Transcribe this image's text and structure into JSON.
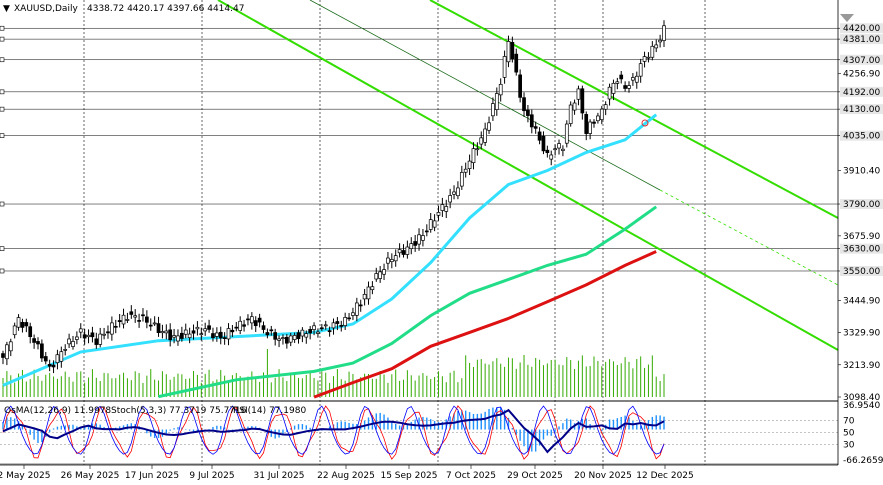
{
  "header": {
    "symbol": "XAUUSD,Daily",
    "ohlc": "4338.72 4420.17 4397.66 4414.47"
  },
  "indicator_header": {
    "osma": "OsMA(12,26,9) 11.9978",
    "stoch": "Stoch(5,3,3) 77.3719 75.7716",
    "rsi": "RSI(14) 77.1980"
  },
  "colors": {
    "candle": "#000000",
    "ema_fast": "#33e0ff",
    "ema_mid": "#22dd88",
    "ema_slow": "#dd1111",
    "channel": "#33dd00",
    "volume": "#33aa00",
    "macd_hist": "#1e90ff",
    "macd_line": "#000080",
    "stoch_main": "#0000ff",
    "stoch_signal": "#ff0000",
    "rsi": "#000088",
    "marker": "#dd3333"
  },
  "chart_data": {
    "type": "candlestick",
    "title": "XAUUSD,Daily",
    "ylim": [
      3098.4,
      4471
    ],
    "y_ticks": [
      4420.0,
      4381.0,
      4307.0,
      4256.9,
      4192.0,
      4130.0,
      4035.0,
      3910.4,
      3790.0,
      3675.9,
      3630.0,
      3550.0,
      3444.9,
      3329.9,
      3213.9,
      3098.4
    ],
    "y_tick_labels": [
      "4420.00",
      "4381.00",
      "4307.00",
      "4256.90",
      "4192.00",
      "4130.00",
      "4035.00",
      "3910.40",
      "3790.00",
      "3675.90",
      "3630.00",
      "3550.00",
      "3444.90",
      "3329.90",
      "3213.90",
      "3098.40"
    ],
    "horizontal_levels": [
      4420.0,
      4381.0,
      4307.0,
      4192.0,
      4130.0,
      4035.0,
      3790.0,
      3630.0,
      3550.0
    ],
    "x_dates": [
      "2 May 2025",
      "26 May 2025",
      "17 Jun 2025",
      "9 Jul 2025",
      "31 Jul 2025",
      "22 Aug 2025",
      "15 Sep 2025",
      "7 Oct 2025",
      "29 Oct 2025",
      "20 Nov 2025",
      "12 Dec 2025"
    ],
    "price_path": [
      [
        0,
        3240
      ],
      [
        4,
        3380
      ],
      [
        8,
        3300
      ],
      [
        12,
        3200
      ],
      [
        16,
        3280
      ],
      [
        20,
        3330
      ],
      [
        24,
        3300
      ],
      [
        28,
        3350
      ],
      [
        32,
        3390
      ],
      [
        36,
        3380
      ],
      [
        40,
        3340
      ],
      [
        44,
        3310
      ],
      [
        48,
        3330
      ],
      [
        52,
        3340
      ],
      [
        56,
        3310
      ],
      [
        60,
        3350
      ],
      [
        64,
        3380
      ],
      [
        68,
        3330
      ],
      [
        72,
        3300
      ],
      [
        76,
        3320
      ],
      [
        80,
        3340
      ],
      [
        84,
        3350
      ],
      [
        88,
        3370
      ],
      [
        92,
        3440
      ],
      [
        96,
        3530
      ],
      [
        100,
        3600
      ],
      [
        104,
        3630
      ],
      [
        108,
        3680
      ],
      [
        112,
        3760
      ],
      [
        116,
        3830
      ],
      [
        120,
        3950
      ],
      [
        124,
        4050
      ],
      [
        128,
        4230
      ],
      [
        130,
        4380
      ],
      [
        132,
        4250
      ],
      [
        134,
        4120
      ],
      [
        136,
        4080
      ],
      [
        138,
        4020
      ],
      [
        140,
        3960
      ],
      [
        142,
        3990
      ],
      [
        144,
        4000
      ],
      [
        146,
        4140
      ],
      [
        148,
        4190
      ],
      [
        150,
        4050
      ],
      [
        152,
        4090
      ],
      [
        154,
        4120
      ],
      [
        156,
        4200
      ],
      [
        158,
        4240
      ],
      [
        160,
        4210
      ],
      [
        162,
        4230
      ],
      [
        164,
        4290
      ],
      [
        166,
        4330
      ],
      [
        168,
        4360
      ],
      [
        170,
        4415
      ]
    ],
    "moving_averages": [
      {
        "name": "",
        "color": "#33e0ff",
        "points": [
          [
            0,
            3140
          ],
          [
            20,
            3260
          ],
          [
            40,
            3300
          ],
          [
            60,
            3315
          ],
          [
            80,
            3330
          ],
          [
            90,
            3360
          ],
          [
            100,
            3450
          ],
          [
            110,
            3580
          ],
          [
            120,
            3740
          ],
          [
            130,
            3860
          ],
          [
            140,
            3910
          ],
          [
            150,
            3975
          ],
          [
            160,
            4020
          ],
          [
            168,
            4110
          ]
        ]
      },
      {
        "name": "",
        "color": "#22dd88",
        "points": [
          [
            40,
            3100
          ],
          [
            60,
            3160
          ],
          [
            80,
            3190
          ],
          [
            90,
            3220
          ],
          [
            100,
            3290
          ],
          [
            110,
            3390
          ],
          [
            120,
            3470
          ],
          [
            130,
            3520
          ],
          [
            140,
            3570
          ],
          [
            150,
            3610
          ],
          [
            160,
            3700
          ],
          [
            168,
            3780
          ]
        ]
      },
      {
        "name": "",
        "color": "#dd1111",
        "points": [
          [
            80,
            3098
          ],
          [
            90,
            3150
          ],
          [
            100,
            3200
          ],
          [
            110,
            3280
          ],
          [
            120,
            3330
          ],
          [
            130,
            3380
          ],
          [
            140,
            3440
          ],
          [
            150,
            3500
          ],
          [
            160,
            3570
          ],
          [
            168,
            3620
          ]
        ]
      }
    ],
    "oscillator": {
      "osma_value": 11.9978,
      "stoch_main": 77.3719,
      "stoch_signal": 75.7716,
      "rsi": 77.198,
      "axis_labels": [
        "36.9540",
        "70",
        "50",
        "30",
        "-66.2659"
      ],
      "level_values": [
        70,
        50,
        30
      ]
    }
  }
}
